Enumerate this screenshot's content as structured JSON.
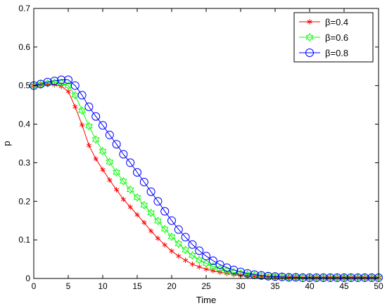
{
  "chart_data": {
    "type": "line",
    "title": "",
    "xlabel": "Time",
    "ylabel": "p",
    "xlim": [
      0,
      50
    ],
    "ylim": [
      0,
      0.7
    ],
    "xticks": [
      0,
      5,
      10,
      15,
      20,
      25,
      30,
      35,
      40,
      45,
      50
    ],
    "xtick_labels": [
      "0",
      "5",
      "10",
      "15",
      "20",
      "25",
      "30",
      "35",
      "40",
      "45",
      "50"
    ],
    "yticks": [
      0,
      0.1,
      0.2,
      0.3,
      0.4,
      0.5,
      0.6,
      0.7
    ],
    "ytick_labels": [
      "0",
      "0.1",
      "0.2",
      "0.3",
      "0.4",
      "0.5",
      "0.6",
      "0.7"
    ],
    "grid": false,
    "legend_position": "top-right",
    "x": [
      0,
      1,
      2,
      3,
      4,
      5,
      6,
      7,
      8,
      9,
      10,
      11,
      12,
      13,
      14,
      15,
      16,
      17,
      18,
      19,
      20,
      21,
      22,
      23,
      24,
      25,
      26,
      27,
      28,
      29,
      30,
      31,
      32,
      33,
      34,
      35,
      36,
      37,
      38,
      39,
      40,
      41,
      42,
      43,
      44,
      45,
      46,
      47,
      48,
      49,
      50
    ],
    "series": [
      {
        "name": "β=0.4",
        "color": "#ff0000",
        "marker": "asterisk",
        "values": [
          0.5,
          0.502,
          0.503,
          0.502,
          0.498,
          0.485,
          0.445,
          0.398,
          0.345,
          0.31,
          0.282,
          0.255,
          0.23,
          0.205,
          0.185,
          0.165,
          0.145,
          0.123,
          0.104,
          0.087,
          0.071,
          0.058,
          0.047,
          0.037,
          0.03,
          0.024,
          0.02,
          0.016,
          0.013,
          0.01,
          0.008,
          0.007,
          0.006,
          0.005,
          0.004,
          0.004,
          0.003,
          0.003,
          0.003,
          0.002,
          0.002,
          0.002,
          0.002,
          0.002,
          0.002,
          0.002,
          0.002,
          0.002,
          0.002,
          0.002,
          0.002
        ]
      },
      {
        "name": "β=0.6",
        "color": "#00ff00",
        "marker": "hexagram",
        "values": [
          0.5,
          0.503,
          0.506,
          0.508,
          0.507,
          0.5,
          0.475,
          0.435,
          0.395,
          0.36,
          0.33,
          0.302,
          0.275,
          0.252,
          0.23,
          0.21,
          0.19,
          0.17,
          0.149,
          0.128,
          0.108,
          0.09,
          0.074,
          0.06,
          0.048,
          0.039,
          0.031,
          0.025,
          0.02,
          0.016,
          0.013,
          0.01,
          0.008,
          0.007,
          0.006,
          0.005,
          0.004,
          0.003,
          0.003,
          0.003,
          0.002,
          0.002,
          0.002,
          0.002,
          0.002,
          0.002,
          0.002,
          0.002,
          0.002,
          0.002,
          0.002
        ]
      },
      {
        "name": "β=0.8",
        "color": "#0000ff",
        "marker": "circle",
        "values": [
          0.5,
          0.504,
          0.509,
          0.512,
          0.515,
          0.515,
          0.5,
          0.475,
          0.445,
          0.42,
          0.397,
          0.372,
          0.348,
          0.322,
          0.3,
          0.275,
          0.25,
          0.225,
          0.2,
          0.174,
          0.15,
          0.127,
          0.107,
          0.088,
          0.072,
          0.058,
          0.046,
          0.036,
          0.028,
          0.022,
          0.017,
          0.013,
          0.01,
          0.008,
          0.006,
          0.005,
          0.004,
          0.003,
          0.003,
          0.002,
          0.002,
          0.002,
          0.002,
          0.002,
          0.002,
          0.002,
          0.002,
          0.002,
          0.002,
          0.002,
          0.002
        ]
      }
    ]
  }
}
